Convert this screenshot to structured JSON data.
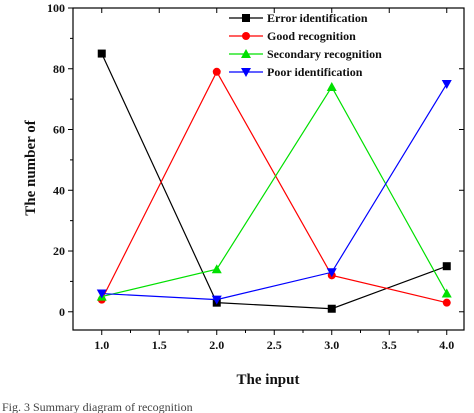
{
  "chart_data": {
    "type": "line",
    "title": "",
    "xlabel": "The input",
    "ylabel": "The number of",
    "x": [
      1.0,
      2.0,
      3.0,
      4.0
    ],
    "xlim": [
      0.75,
      4.15
    ],
    "ylim": [
      -6,
      100
    ],
    "xticks": [
      "1.0",
      "1.5",
      "2.0",
      "2.5",
      "3.0",
      "3.5",
      "4.0"
    ],
    "yticks": [
      "0",
      "20",
      "40",
      "60",
      "80",
      "100"
    ],
    "grid": false,
    "legend_position": "top-right",
    "series": [
      {
        "name": "Error identification",
        "values": [
          85,
          3,
          1,
          15
        ],
        "color": "#000000",
        "marker": "square"
      },
      {
        "name": "Good recognition",
        "values": [
          4,
          79,
          12,
          3
        ],
        "color": "#ff0000",
        "marker": "circle"
      },
      {
        "name": "Secondary recognition",
        "values": [
          5,
          14,
          74,
          6
        ],
        "color": "#00e000",
        "marker": "triangle-up"
      },
      {
        "name": "Poor identification",
        "values": [
          6,
          4,
          13,
          75
        ],
        "color": "#0000ff",
        "marker": "triangle-down"
      }
    ]
  },
  "caption": "Fig. 3    Summary diagram of recognition"
}
